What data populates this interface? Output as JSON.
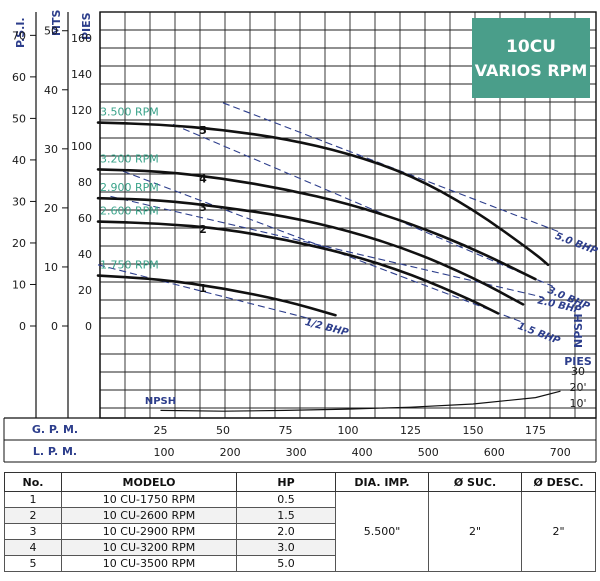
{
  "title": {
    "line1": "10CU",
    "line2": "VARIOS RPM",
    "bg_color": "#4a9e8a"
  },
  "axes": {
    "left_units": [
      "P.S.I.",
      "MTS",
      "PIES"
    ],
    "psi_ticks": [
      "0",
      "10",
      "20",
      "30",
      "40",
      "50",
      "60",
      "70"
    ],
    "mts_ticks": [
      "0",
      "10",
      "20",
      "30",
      "40",
      "50"
    ],
    "pies_ticks": [
      "0",
      "20",
      "40",
      "60",
      "80",
      "100",
      "120",
      "140",
      "160"
    ],
    "gpm_label": "G. P. M.",
    "gpm_ticks": [
      "25",
      "50",
      "75",
      "100",
      "125",
      "150",
      "175"
    ],
    "lpm_label": "L. P. M.",
    "lpm_ticks": [
      "100",
      "200",
      "300",
      "400",
      "500",
      "600",
      "700"
    ],
    "npsh_label": "NPSH",
    "npsh_unit": "PIES",
    "npsh_ticks": [
      "30",
      "20'",
      "10'"
    ]
  },
  "colors": {
    "axis_text": "#2d3e8c",
    "rpm_text": "#3aa38a",
    "curve": "#111111",
    "bhp_line": "#2d3e8c"
  },
  "chart_data": {
    "type": "line",
    "xlabel": "G. P. M.",
    "ylabel": "PIES",
    "xlim": [
      0,
      190
    ],
    "ylim": [
      0,
      170
    ],
    "series": [
      {
        "name": "1.750 RPM",
        "curve_label": "1",
        "x": [
          0,
          25,
          50,
          75,
          95
        ],
        "values": [
          28,
          26,
          21,
          14,
          6
        ]
      },
      {
        "name": "2.600 RPM",
        "curve_label": "2",
        "x": [
          0,
          25,
          50,
          75,
          100,
          125,
          150,
          160
        ],
        "values": [
          58,
          57,
          54,
          48,
          40,
          29,
          14,
          7
        ]
      },
      {
        "name": "2.900 RPM",
        "curve_label": "3",
        "x": [
          0,
          25,
          50,
          75,
          100,
          125,
          150,
          170
        ],
        "values": [
          71,
          70,
          66,
          61,
          53,
          42,
          27,
          12
        ]
      },
      {
        "name": "3.200 RPM",
        "curve_label": "4",
        "x": [
          0,
          25,
          50,
          75,
          100,
          125,
          150,
          175
        ],
        "values": [
          87,
          86,
          82,
          76,
          68,
          57,
          43,
          26
        ]
      },
      {
        "name": "3.500 RPM",
        "curve_label": "5",
        "x": [
          0,
          25,
          50,
          75,
          100,
          125,
          150,
          175,
          180
        ],
        "values": [
          113,
          112,
          109,
          104,
          96,
          84,
          65,
          40,
          34
        ]
      }
    ],
    "bhp_lines": [
      {
        "label": "1/2 BHP",
        "x": [
          0,
          85
        ],
        "values": [
          34,
          4
        ]
      },
      {
        "label": "1.5 BHP",
        "x": [
          10,
          170
        ],
        "values": [
          86,
          2
        ]
      },
      {
        "label": "2.0 BHP",
        "x": [
          5,
          178
        ],
        "values": [
          72,
          16
        ]
      },
      {
        "label": "3.0 BHP",
        "x": [
          30,
          182
        ],
        "values": [
          112,
          22
        ]
      },
      {
        "label": "5.0 BHP",
        "x": [
          50,
          185
        ],
        "values": [
          124,
          52
        ]
      }
    ],
    "npsh": {
      "label": "NPSH",
      "x": [
        25,
        50,
        75,
        100,
        125,
        150,
        175,
        185
      ],
      "values": [
        1,
        0.5,
        1,
        1.8,
        3,
        5,
        9,
        13
      ]
    }
  },
  "table": {
    "headers": [
      "No.",
      "MODELO",
      "HP",
      "DIA. IMP.",
      "Ø SUC.",
      "Ø DESC."
    ],
    "rows": [
      {
        "no": "1",
        "modelo": "10 CU-1750 RPM",
        "hp": "0.5"
      },
      {
        "no": "2",
        "modelo": "10 CU-2600 RPM",
        "hp": "1.5"
      },
      {
        "no": "3",
        "modelo": "10 CU-2900 RPM",
        "hp": "2.0"
      },
      {
        "no": "4",
        "modelo": "10 CU-3200 RPM",
        "hp": "3.0"
      },
      {
        "no": "5",
        "modelo": "10 CU-3500 RPM",
        "hp": "5.0"
      }
    ],
    "dia_imp": "5.500\"",
    "suc": "2\"",
    "desc": "2\""
  }
}
